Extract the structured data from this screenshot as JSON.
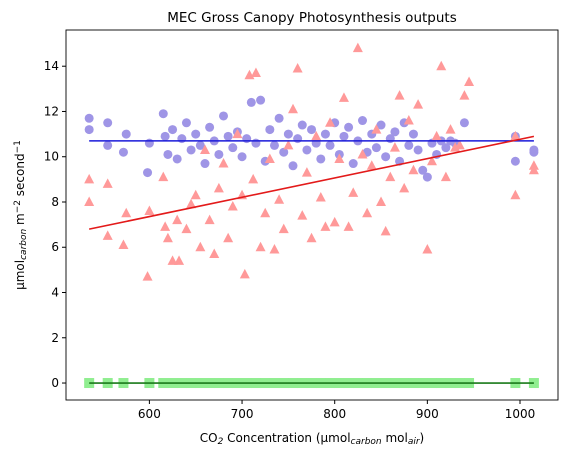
{
  "chart_data": {
    "type": "scatter",
    "title": "MEC Gross Canopy Photosynthesis outputs",
    "xlabel": [
      {
        "text": "CO"
      },
      {
        "text": "2",
        "script": "sub"
      },
      {
        "text": " Concentration (μmol"
      },
      {
        "text": "carbon",
        "script": "sub"
      },
      {
        "text": " mol"
      },
      {
        "text": "air",
        "script": "sub"
      },
      {
        "text": ")"
      }
    ],
    "ylabel": [
      {
        "text": "μmol"
      },
      {
        "text": "carbon",
        "script": "sub"
      },
      {
        "text": " m"
      },
      {
        "text": "−2",
        "script": "sup"
      },
      {
        "text": " second"
      },
      {
        "text": "−1",
        "script": "sup"
      }
    ],
    "xlim": [
      510,
      1041
    ],
    "ylim": [
      -0.75,
      15.6
    ],
    "xticks": [
      600,
      700,
      800,
      900,
      1000
    ],
    "yticks": [
      0,
      2,
      4,
      6,
      8,
      10,
      12,
      14
    ],
    "series": [
      {
        "marker": "square",
        "color": "#90ee90",
        "x": [
          535,
          555,
          572,
          600,
          615,
          625,
          635,
          645,
          655,
          665,
          675,
          685,
          695,
          705,
          715,
          725,
          735,
          745,
          755,
          765,
          775,
          785,
          795,
          805,
          815,
          825,
          835,
          845,
          855,
          865,
          875,
          885,
          895,
          905,
          915,
          925,
          935,
          945,
          995,
          1015
        ],
        "values": [
          0,
          0,
          0,
          0,
          0,
          0,
          0,
          0,
          0,
          0,
          0,
          0,
          0,
          0,
          0,
          0,
          0,
          0,
          0,
          0,
          0,
          0,
          0,
          0,
          0,
          0,
          0,
          0,
          0,
          0,
          0,
          0,
          0,
          0,
          0,
          0,
          0,
          0,
          0,
          0
        ]
      },
      {
        "marker": "circle",
        "color": "#9f95e6",
        "x": [
          535,
          535,
          555,
          555,
          572,
          575,
          598,
          600,
          615,
          617,
          620,
          625,
          630,
          635,
          640,
          645,
          650,
          655,
          660,
          665,
          670,
          675,
          680,
          685,
          690,
          695,
          700,
          705,
          710,
          715,
          720,
          725,
          730,
          735,
          740,
          745,
          750,
          755,
          760,
          765,
          770,
          775,
          780,
          785,
          790,
          795,
          800,
          805,
          810,
          815,
          820,
          825,
          830,
          835,
          840,
          845,
          850,
          855,
          860,
          865,
          870,
          875,
          880,
          885,
          890,
          895,
          900,
          905,
          910,
          915,
          920,
          925,
          930,
          940,
          995,
          995,
          1015,
          1015
        ],
        "values": [
          11.7,
          11.2,
          11.5,
          10.5,
          10.2,
          11.0,
          9.3,
          10.6,
          11.9,
          10.9,
          10.1,
          11.2,
          9.9,
          10.8,
          11.5,
          10.3,
          11.0,
          10.5,
          9.7,
          11.3,
          10.7,
          10.1,
          11.8,
          10.9,
          10.4,
          11.1,
          10.0,
          10.8,
          12.4,
          10.6,
          12.5,
          9.8,
          11.2,
          10.5,
          11.7,
          10.2,
          11.0,
          9.6,
          10.8,
          11.4,
          10.3,
          11.2,
          10.6,
          9.9,
          11.0,
          10.5,
          11.5,
          10.1,
          10.9,
          11.3,
          9.7,
          10.7,
          11.6,
          10.2,
          11.0,
          10.4,
          11.4,
          10.0,
          10.8,
          11.1,
          9.8,
          11.5,
          10.5,
          11.0,
          10.3,
          9.4,
          9.1,
          10.6,
          10.1,
          10.7,
          10.4,
          10.7,
          10.6,
          11.5,
          9.8,
          10.9,
          10.2,
          10.3
        ]
      },
      {
        "marker": "triangle",
        "color": "#ff9999",
        "x": [
          535,
          535,
          555,
          555,
          572,
          575,
          598,
          600,
          615,
          617,
          620,
          625,
          630,
          632,
          640,
          645,
          650,
          655,
          660,
          665,
          670,
          675,
          680,
          685,
          690,
          695,
          700,
          703,
          708,
          712,
          715,
          720,
          725,
          730,
          735,
          740,
          745,
          750,
          755,
          760,
          765,
          770,
          775,
          780,
          785,
          790,
          795,
          800,
          805,
          810,
          815,
          820,
          825,
          830,
          835,
          840,
          845,
          850,
          855,
          860,
          865,
          870,
          875,
          880,
          885,
          890,
          900,
          905,
          910,
          915,
          920,
          925,
          930,
          935,
          940,
          945,
          995,
          995,
          1015,
          1015
        ],
        "values": [
          9.0,
          8.0,
          6.5,
          8.8,
          6.1,
          7.5,
          4.7,
          7.6,
          9.1,
          6.9,
          6.4,
          5.4,
          7.2,
          5.4,
          6.8,
          7.9,
          8.3,
          6.0,
          10.3,
          7.2,
          5.7,
          8.6,
          9.7,
          6.4,
          7.8,
          11.0,
          8.3,
          4.8,
          13.6,
          9.0,
          13.7,
          6.0,
          7.5,
          9.9,
          5.9,
          8.1,
          6.8,
          10.5,
          12.1,
          13.9,
          7.4,
          9.3,
          6.4,
          10.9,
          8.2,
          6.9,
          11.5,
          7.1,
          9.9,
          12.6,
          6.9,
          8.4,
          14.8,
          10.1,
          7.5,
          9.6,
          11.2,
          8.0,
          6.7,
          9.1,
          10.4,
          12.7,
          8.6,
          11.6,
          9.4,
          12.3,
          5.9,
          9.8,
          10.9,
          14.0,
          9.1,
          11.2,
          10.4,
          10.5,
          12.7,
          13.3,
          8.3,
          10.9,
          9.4,
          9.6
        ]
      },
      {
        "marker": "line",
        "color": "#1a1ad9",
        "x": [
          535,
          1015
        ],
        "values": [
          10.7,
          10.7
        ]
      },
      {
        "marker": "line",
        "color": "#e31a1a",
        "x": [
          535,
          1015
        ],
        "values": [
          6.8,
          10.9
        ]
      },
      {
        "marker": "line",
        "color": "#1a7a1a",
        "x": [
          535,
          1015
        ],
        "values": [
          0,
          0
        ]
      }
    ]
  }
}
